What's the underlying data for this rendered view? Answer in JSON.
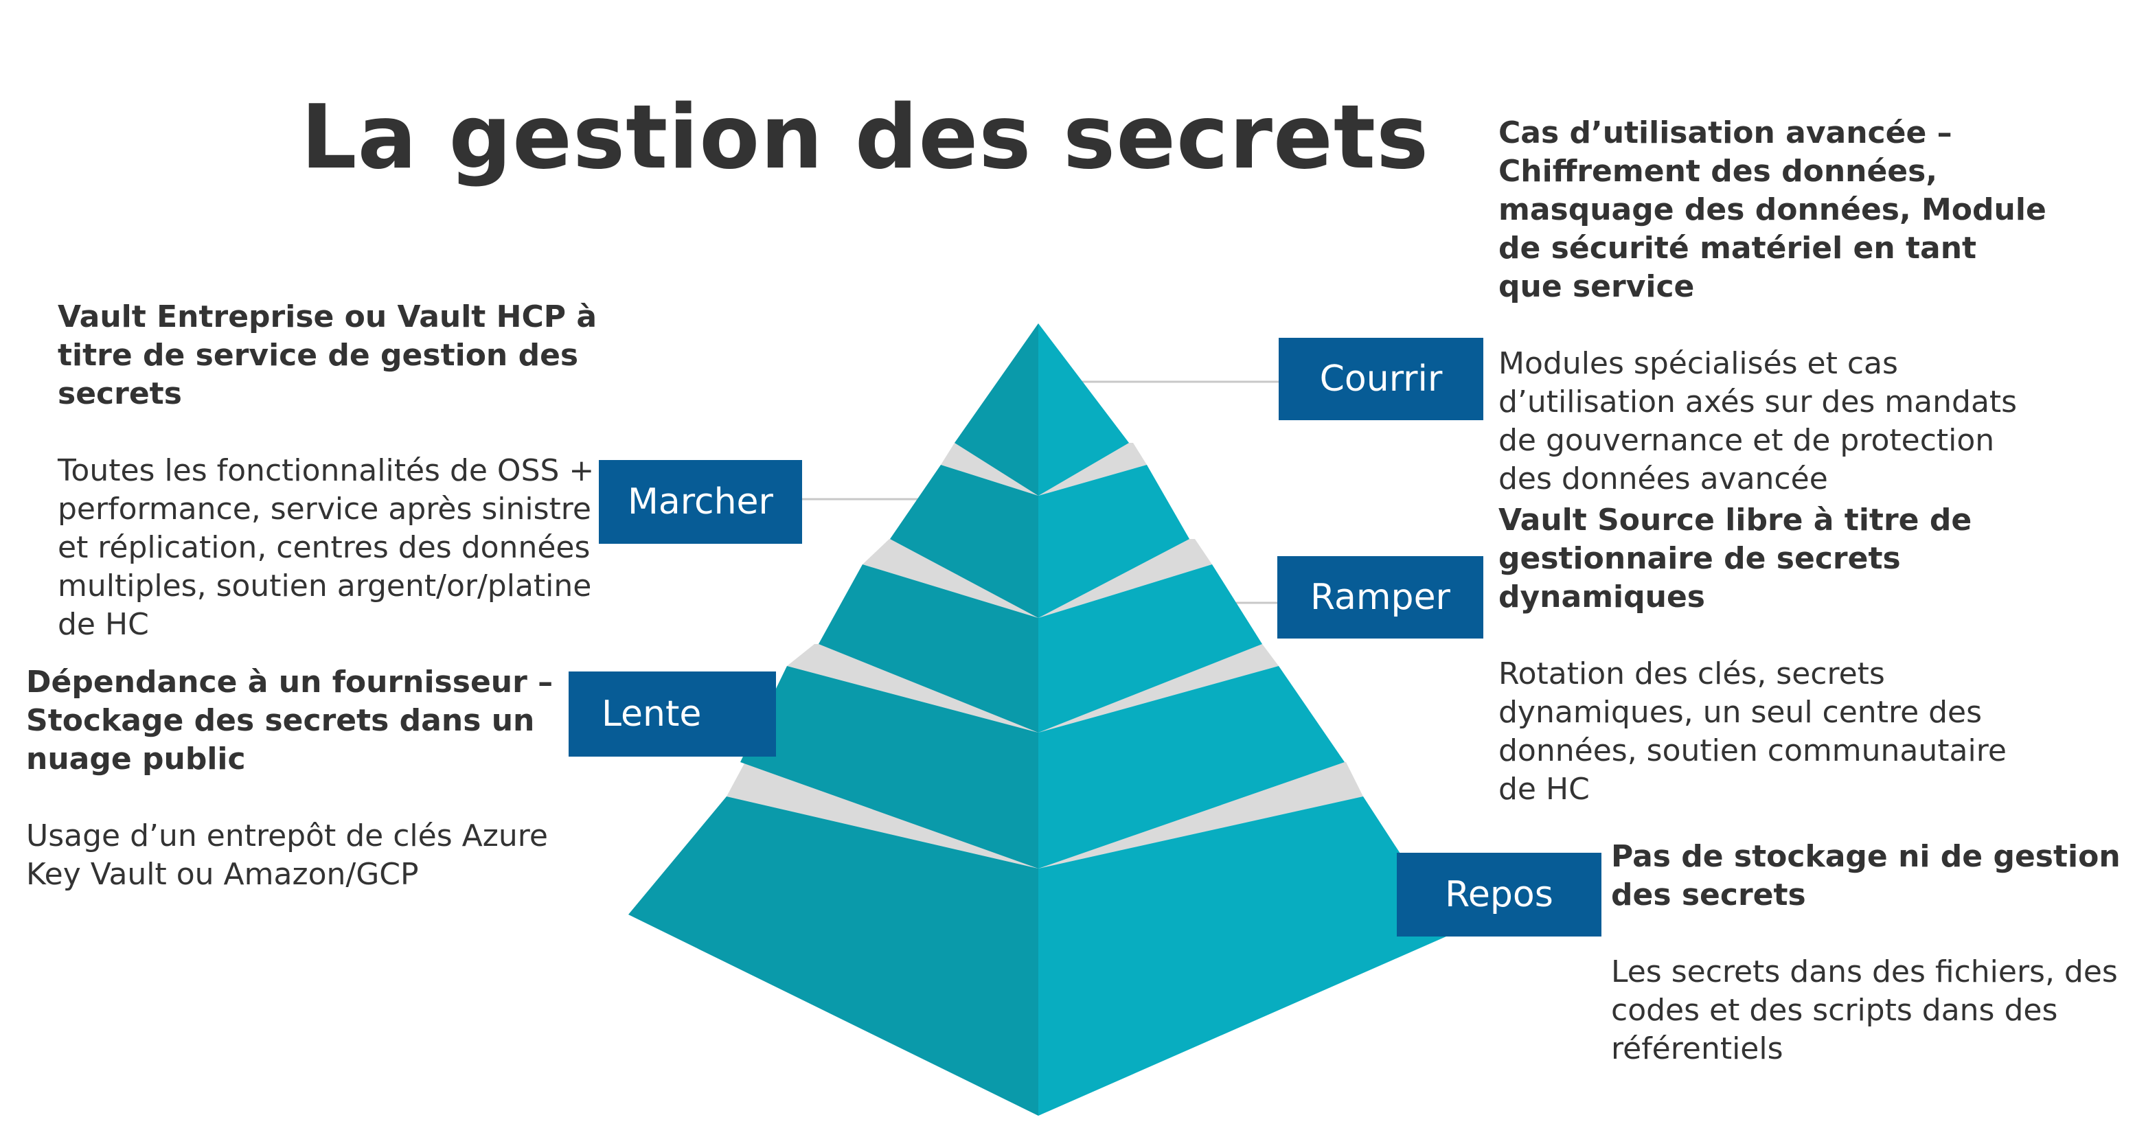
{
  "title": "La gestion des secrets",
  "colors": {
    "label_bg": "#075C96",
    "pyramid_dark": "#0A9AAA",
    "pyramid_light": "#08ADC0",
    "separator": "#DADADA",
    "text": "#333333"
  },
  "levels": [
    {
      "label": "Courrir",
      "heading": "Cas d’utilisation avancée – Chiffrement des données, masquage des données, Module de sécurité matériel en tant que service",
      "description": "Modules spécialisés et cas d’utilisation axés sur des mandats de gouvernance et de protection des données avancée"
    },
    {
      "label": "Marcher",
      "heading": "Vault Entreprise ou Vault HCP à titre de service de gestion des secrets",
      "description": "Toutes les fonctionnalités de OSS + performance, service après sinistre et réplication, centres des données multiples, soutien argent/or/platine de HC"
    },
    {
      "label": "Ramper",
      "heading": "Vault Source libre à titre de gestionnaire de secrets dynamiques",
      "description": "Rotation des clés, secrets dynamiques, un seul centre des données, soutien communautaire de HC"
    },
    {
      "label": "Lente",
      "heading": "Dépendance à un fournisseur – Stockage des secrets dans un nuage public",
      "description": "Usage d’un entrepôt de clés Azure Key Vault ou Amazon/GCP"
    },
    {
      "label": "Repos",
      "heading": "Pas de stockage ni de gestion des secrets",
      "description": "Les secrets dans des fichiers, des codes et des scripts dans des référentiels"
    }
  ]
}
